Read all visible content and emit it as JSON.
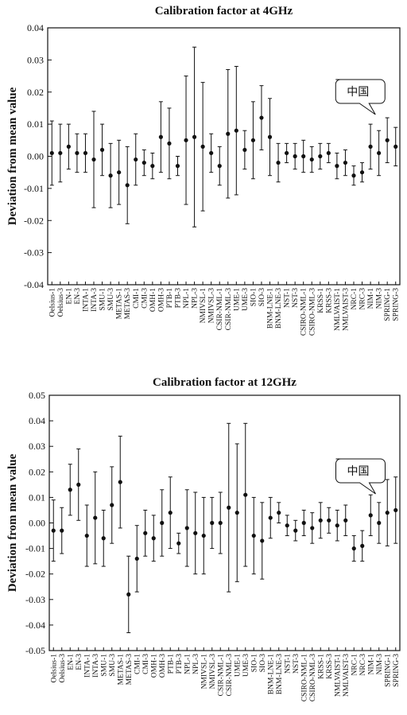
{
  "chart_data": [
    {
      "type": "errorbar",
      "title": "Calibration factor at 4GHz",
      "y_label": "Deviation from mean value",
      "annotation": "中国",
      "categories": [
        "Oelsius-1",
        "Oelsius-3",
        "EN-1",
        "EN-3",
        "INTA-1",
        "INTA-3",
        "SMU-1",
        "SMU-3",
        "METAS-1",
        "METAS-3",
        "CMI-1",
        "CMI-3",
        "OMH-1",
        "OMH-3",
        "PTB-1",
        "PTB-3",
        "NPL-1",
        "NPL-3",
        "NMIVSL-1",
        "NMIVSL-3",
        "CSIR-NML-1",
        "CSIR-NML-3",
        "UME-1",
        "UME-3",
        "SIO-1",
        "SIO-3",
        "BNM-LNE-1",
        "BNM-LNE-3",
        "NST-1",
        "NST-3",
        "CSIRO-NML-1",
        "CSIRO-NML-3",
        "KRSS-1",
        "KRSS-3",
        "NMLVAIST-1",
        "NMLVAIST-3",
        "NRC-1",
        "NRC-3",
        "NIM-1",
        "NIM-3",
        "SPRING-1",
        "SPRING-3"
      ],
      "values": [
        0.001,
        0.001,
        0.003,
        0.001,
        0.001,
        -0.001,
        0.002,
        -0.006,
        -0.005,
        -0.009,
        -0.001,
        -0.002,
        -0.003,
        0.006,
        0.004,
        -0.003,
        0.005,
        0.006,
        0.003,
        0.001,
        -0.003,
        0.007,
        0.008,
        0.002,
        0.005,
        0.012,
        0.006,
        -0.002,
        0.001,
        0.0,
        0.0,
        -0.001,
        0.0,
        0.001,
        -0.003,
        -0.002,
        -0.006,
        -0.005,
        0.003,
        0.001,
        0.005,
        0.003
      ],
      "errors": [
        0.01,
        0.009,
        0.007,
        0.006,
        0.006,
        0.015,
        0.008,
        0.01,
        0.01,
        0.012,
        0.008,
        0.004,
        0.004,
        0.011,
        0.011,
        0.003,
        0.02,
        0.028,
        0.02,
        0.006,
        0.006,
        0.02,
        0.02,
        0.006,
        0.012,
        0.01,
        0.012,
        0.006,
        0.003,
        0.004,
        0.005,
        0.004,
        0.004,
        0.003,
        0.004,
        0.004,
        0.003,
        0.003,
        0.007,
        0.007,
        0.007,
        0.006
      ],
      "color": "#111111",
      "ylim": [
        -0.04,
        0.04
      ],
      "yticks": [
        -0.04,
        -0.03,
        -0.02,
        -0.01,
        {
          "value": 0,
          "label": "0.00"
        },
        0.01,
        0.02,
        0.03,
        0.04
      ]
    },
    {
      "type": "errorbar",
      "title": "Calibration factor at 12GHz",
      "y_label": "Deviation from mean value",
      "annotation": "中国",
      "categories": [
        "Oelsius-1",
        "Oelsius-3",
        "EN-1",
        "EN-3",
        "INTA-1",
        "INTA-3",
        "SMU-1",
        "SMU-3",
        "METAS-1",
        "METAS-3",
        "CMI-1",
        "CMI-3",
        "OMH-1",
        "OMH-3",
        "PTB-1",
        "PTB-3",
        "NPL-1",
        "NPL-3",
        "NMIVSL-1",
        "NMIVSL-3",
        "CSIR-NML-1",
        "CSIR-NML-3",
        "UME-1",
        "UME-3",
        "SIO-1",
        "SIO-3",
        "BNM-LNE-1",
        "BNM-LNE-3",
        "NST-1",
        "NST-3",
        "CSIRO-NML-1",
        "CSIRO-NML-3",
        "KRSS-1",
        "KRSS-3",
        "NMLVAIST-1",
        "NMLVAIST-3",
        "NRC-1",
        "NRC-3",
        "NIM-1",
        "NIM-3",
        "SPRING-1",
        "SPRING-3"
      ],
      "values": [
        -0.003,
        -0.003,
        0.013,
        0.015,
        -0.005,
        0.002,
        -0.006,
        0.007,
        0.016,
        -0.028,
        -0.014,
        -0.004,
        -0.006,
        0.0,
        0.004,
        -0.008,
        -0.002,
        -0.004,
        -0.005,
        0.0,
        0.0,
        0.006,
        0.004,
        0.011,
        -0.005,
        -0.007,
        0.002,
        0.004,
        -0.001,
        -0.003,
        0.0,
        -0.002,
        0.001,
        0.001,
        -0.001,
        0.001,
        -0.01,
        -0.009,
        0.003,
        0.0,
        0.004,
        0.005
      ],
      "errors": [
        0.012,
        0.009,
        0.01,
        0.014,
        0.012,
        0.018,
        0.011,
        0.015,
        0.018,
        0.015,
        0.013,
        0.009,
        0.009,
        0.013,
        0.014,
        0.004,
        0.015,
        0.016,
        0.015,
        0.01,
        0.012,
        0.033,
        0.027,
        0.028,
        0.015,
        0.015,
        0.008,
        0.004,
        0.004,
        0.004,
        0.005,
        0.006,
        0.007,
        0.005,
        0.006,
        0.006,
        0.005,
        0.006,
        0.008,
        0.008,
        0.013,
        0.013
      ],
      "color": "#111111",
      "ylim": [
        -0.05,
        0.05
      ],
      "yticks": [
        -0.05,
        -0.04,
        -0.03,
        -0.02,
        -0.01,
        {
          "value": 0,
          "label": "0.00"
        },
        0.01,
        0.02,
        0.03,
        0.04,
        0.05
      ]
    }
  ]
}
